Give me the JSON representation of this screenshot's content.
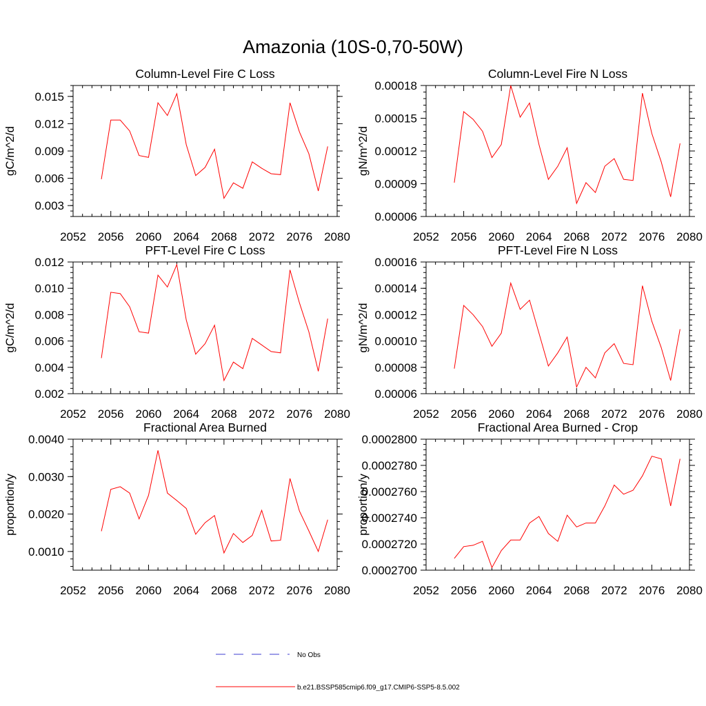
{
  "title": "Amazonia (10S-0,70-50W)",
  "colors": {
    "model": "#ff0000",
    "obs": "#3b3bd0",
    "axis": "#000000"
  },
  "legend": {
    "obs_label": "No Obs",
    "model_label": "b.e21.BSSP585cmip6.f09_g17.CMIP6-SSP5-8.5.002"
  },
  "chart_data": [
    {
      "type": "line",
      "title": "Column-Level Fire C Loss",
      "ylabel": "gC/m^2/d",
      "xlim": [
        2052,
        2080
      ],
      "ylim": [
        0.0018,
        0.0162
      ],
      "xticks": [
        2052,
        2056,
        2060,
        2064,
        2068,
        2072,
        2076,
        2080
      ],
      "yticks": [
        0.003,
        0.006,
        0.009,
        0.012,
        0.015
      ],
      "ytick_labels": [
        "0.003",
        "0.006",
        "0.009",
        "0.012",
        "0.015"
      ],
      "x": [
        2055,
        2056,
        2057,
        2058,
        2059,
        2060,
        2061,
        2062,
        2063,
        2064,
        2065,
        2066,
        2067,
        2068,
        2069,
        2070,
        2071,
        2072,
        2073,
        2074,
        2075,
        2076,
        2077,
        2078,
        2079
      ],
      "series": [
        {
          "name": "b.e21.BSSP585cmip6.f09_g17.CMIP6-SSP5-8.5.002",
          "values": [
            0.0059,
            0.0124,
            0.0124,
            0.0112,
            0.0085,
            0.0083,
            0.0143,
            0.0129,
            0.0153,
            0.0097,
            0.0063,
            0.0072,
            0.0092,
            0.0038,
            0.0055,
            0.0049,
            0.0078,
            0.0071,
            0.0065,
            0.0064,
            0.0143,
            0.0111,
            0.0087,
            0.0046,
            0.0095
          ]
        }
      ]
    },
    {
      "type": "line",
      "title": "Column-Level Fire N Loss",
      "ylabel": "gN/m^2/d",
      "xlim": [
        2052,
        2080
      ],
      "ylim": [
        6e-05,
        0.00018
      ],
      "xticks": [
        2052,
        2056,
        2060,
        2064,
        2068,
        2072,
        2076,
        2080
      ],
      "yticks": [
        6e-05,
        9e-05,
        0.00012,
        0.00015,
        0.00018
      ],
      "ytick_labels": [
        "0.00006",
        "0.00009",
        "0.00012",
        "0.00015",
        "0.00018"
      ],
      "x": [
        2055,
        2056,
        2057,
        2058,
        2059,
        2060,
        2061,
        2062,
        2063,
        2064,
        2065,
        2066,
        2067,
        2068,
        2069,
        2070,
        2071,
        2072,
        2073,
        2074,
        2075,
        2076,
        2077,
        2078,
        2079
      ],
      "series": [
        {
          "name": "b.e21.BSSP585cmip6.f09_g17.CMIP6-SSP5-8.5.002",
          "values": [
            9.1e-05,
            0.000156,
            0.000149,
            0.000138,
            0.000114,
            0.000126,
            0.00018,
            0.000151,
            0.000164,
            0.000126,
            9.4e-05,
            0.000106,
            0.000123,
            7.2e-05,
            9.1e-05,
            8.2e-05,
            0.000106,
            0.000113,
            9.4e-05,
            9.3e-05,
            0.000173,
            0.000136,
            0.00011,
            7.8e-05,
            0.000127
          ]
        }
      ]
    },
    {
      "type": "line",
      "title": "PFT-Level Fire C Loss",
      "ylabel": "gC/m^2/d",
      "xlim": [
        2052,
        2080
      ],
      "ylim": [
        0.002,
        0.012
      ],
      "xticks": [
        2052,
        2056,
        2060,
        2064,
        2068,
        2072,
        2076,
        2080
      ],
      "yticks": [
        0.002,
        0.004,
        0.006,
        0.008,
        0.01,
        0.012
      ],
      "ytick_labels": [
        "0.002",
        "0.004",
        "0.006",
        "0.008",
        "0.010",
        "0.012"
      ],
      "x": [
        2055,
        2056,
        2057,
        2058,
        2059,
        2060,
        2061,
        2062,
        2063,
        2064,
        2065,
        2066,
        2067,
        2068,
        2069,
        2070,
        2071,
        2072,
        2073,
        2074,
        2075,
        2076,
        2077,
        2078,
        2079
      ],
      "series": [
        {
          "name": "b.e21.BSSP585cmip6.f09_g17.CMIP6-SSP5-8.5.002",
          "values": [
            0.0047,
            0.0097,
            0.0096,
            0.0086,
            0.0067,
            0.0066,
            0.011,
            0.0101,
            0.0118,
            0.0076,
            0.005,
            0.0058,
            0.0072,
            0.003,
            0.0044,
            0.0039,
            0.0062,
            0.0057,
            0.0052,
            0.0051,
            0.0114,
            0.0089,
            0.0067,
            0.0037,
            0.0077
          ]
        }
      ]
    },
    {
      "type": "line",
      "title": "PFT-Level Fire N Loss",
      "ylabel": "gN/m^2/d",
      "xlim": [
        2052,
        2080
      ],
      "ylim": [
        6e-05,
        0.00016
      ],
      "xticks": [
        2052,
        2056,
        2060,
        2064,
        2068,
        2072,
        2076,
        2080
      ],
      "yticks": [
        6e-05,
        8e-05,
        0.0001,
        0.00012,
        0.00014,
        0.00016
      ],
      "ytick_labels": [
        "0.00006",
        "0.00008",
        "0.00010",
        "0.00012",
        "0.00014",
        "0.00016"
      ],
      "x": [
        2055,
        2056,
        2057,
        2058,
        2059,
        2060,
        2061,
        2062,
        2063,
        2064,
        2065,
        2066,
        2067,
        2068,
        2069,
        2070,
        2071,
        2072,
        2073,
        2074,
        2075,
        2076,
        2077,
        2078,
        2079
      ],
      "series": [
        {
          "name": "b.e21.BSSP585cmip6.f09_g17.CMIP6-SSP5-8.5.002",
          "values": [
            7.9e-05,
            0.000127,
            0.00012,
            0.000111,
            9.6e-05,
            0.000106,
            0.000144,
            0.000124,
            0.000131,
            0.000106,
            8.1e-05,
            9.1e-05,
            0.000103,
            6.5e-05,
            8e-05,
            7.2e-05,
            9.1e-05,
            9.8e-05,
            8.3e-05,
            8.2e-05,
            0.000142,
            0.000115,
            9.5e-05,
            7e-05,
            0.000109
          ]
        }
      ]
    },
    {
      "type": "line",
      "title": "Fractional Area Burned",
      "ylabel": "proportion/y",
      "xlim": [
        2052,
        2080
      ],
      "ylim": [
        0.0005,
        0.004
      ],
      "xticks": [
        2052,
        2056,
        2060,
        2064,
        2068,
        2072,
        2076,
        2080
      ],
      "yticks": [
        0.001,
        0.002,
        0.003,
        0.004
      ],
      "ytick_labels": [
        "0.0010",
        "0.0020",
        "0.0030",
        "0.0040"
      ],
      "x": [
        2055,
        2056,
        2057,
        2058,
        2059,
        2060,
        2061,
        2062,
        2063,
        2064,
        2065,
        2066,
        2067,
        2068,
        2069,
        2070,
        2071,
        2072,
        2073,
        2074,
        2075,
        2076,
        2077,
        2078,
        2079
      ],
      "series": [
        {
          "name": "b.e21.BSSP585cmip6.f09_g17.CMIP6-SSP5-8.5.002",
          "values": [
            0.00154,
            0.00266,
            0.00273,
            0.00256,
            0.00187,
            0.0025,
            0.0037,
            0.00256,
            0.00236,
            0.00215,
            0.00146,
            0.00177,
            0.00196,
            0.00096,
            0.00148,
            0.00124,
            0.00143,
            0.0021,
            0.00128,
            0.0013,
            0.00295,
            0.00208,
            0.00155,
            0.001,
            0.00185
          ]
        }
      ]
    },
    {
      "type": "line",
      "title": "Fractional Area Burned - Crop",
      "ylabel": "proportion/y",
      "xlim": [
        2052,
        2080
      ],
      "ylim": [
        0.00027,
        0.00028
      ],
      "xticks": [
        2052,
        2056,
        2060,
        2064,
        2068,
        2072,
        2076,
        2080
      ],
      "yticks": [
        0.00027,
        0.000272,
        0.000274,
        0.000276,
        0.000278,
        0.00028
      ],
      "ytick_labels": [
        "0.0002700",
        "0.0002720",
        "0.0002740",
        "0.0002760",
        "0.0002780",
        "0.0002800"
      ],
      "x": [
        2055,
        2056,
        2057,
        2058,
        2059,
        2060,
        2061,
        2062,
        2063,
        2064,
        2065,
        2066,
        2067,
        2068,
        2069,
        2070,
        2071,
        2072,
        2073,
        2074,
        2075,
        2076,
        2077,
        2078,
        2079
      ],
      "series": [
        {
          "name": "b.e21.BSSP585cmip6.f09_g17.CMIP6-SSP5-8.5.002",
          "values": [
            0.0002709,
            0.0002718,
            0.0002719,
            0.0002722,
            0.0002702,
            0.0002715,
            0.0002723,
            0.0002723,
            0.0002736,
            0.0002741,
            0.0002728,
            0.0002722,
            0.0002742,
            0.0002733,
            0.0002736,
            0.0002736,
            0.0002749,
            0.0002765,
            0.0002758,
            0.0002761,
            0.0002772,
            0.0002787,
            0.0002785,
            0.0002749,
            0.0002785
          ]
        }
      ]
    }
  ]
}
